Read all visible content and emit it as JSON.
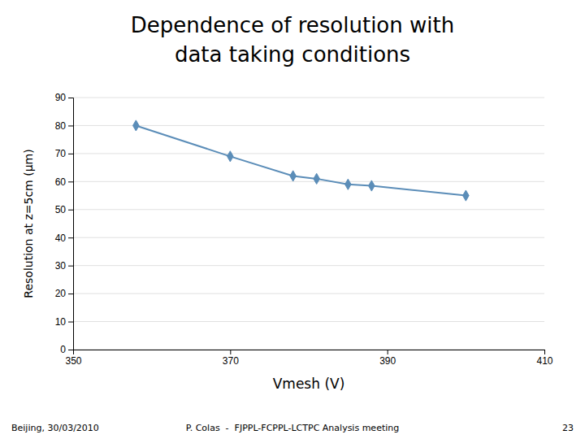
{
  "chart_data": {
    "type": "line",
    "title": [
      "Dependence of resolution with",
      "data taking conditions"
    ],
    "x_label": "Vmesh (V)",
    "y_label": "Resolution at z=5cm (µm)",
    "x": [
      358,
      370,
      378,
      381,
      385,
      388,
      400
    ],
    "values": [
      80,
      69,
      62,
      61,
      59,
      58.5,
      55
    ],
    "color": "#5b8db8",
    "marker": "diamond",
    "xlim": [
      350,
      410
    ],
    "ylim": [
      0,
      90
    ],
    "xticks": [
      350,
      370,
      390,
      410
    ],
    "yticks": [
      0,
      10,
      20,
      30,
      40,
      50,
      60,
      70,
      80,
      90
    ],
    "grid": "y",
    "annotations": [
      "Beijing, 30/03/2010",
      "P. Colas  -  FJPPL-FCPPL-LCTPC Analysis meeting",
      "23"
    ]
  }
}
